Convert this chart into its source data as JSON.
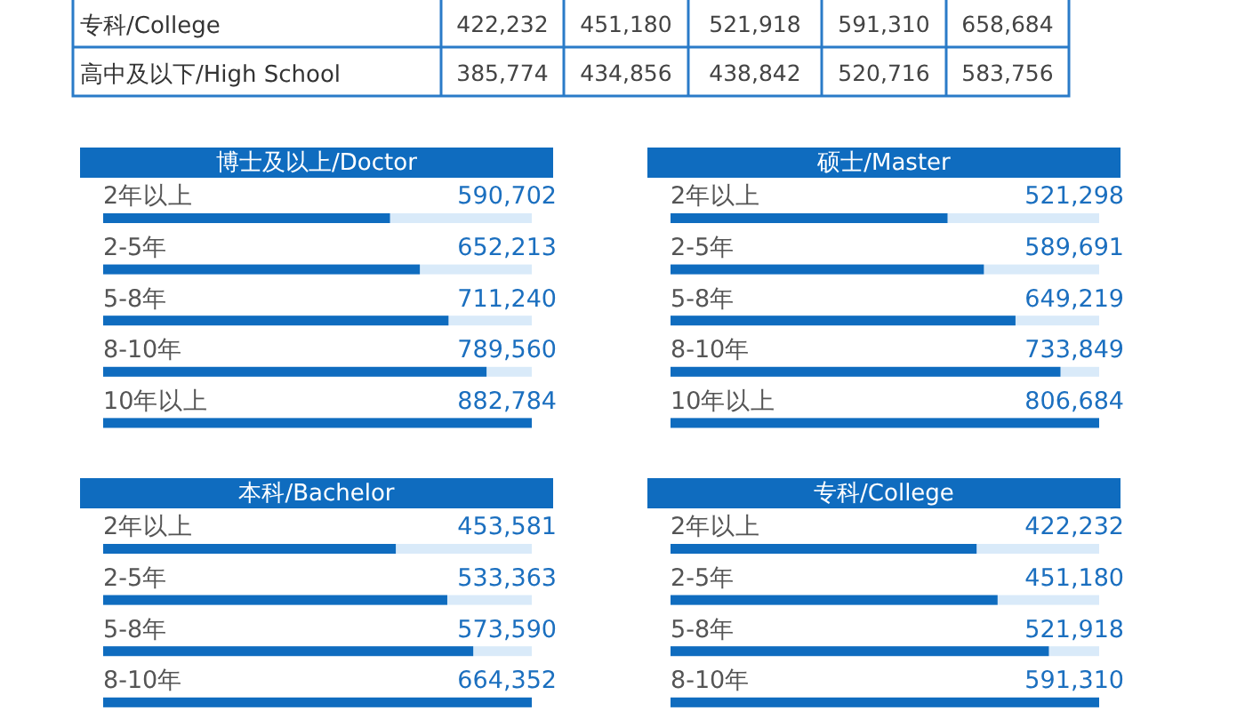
{
  "chart_data": [
    {
      "type": "other",
      "annotations": [
        "专科/College",
        "422,232",
        "451,180",
        "521,918",
        "591,310",
        "658,684",
        "高中及以下/High School",
        "385,774",
        "434,856",
        "438,842",
        "520,716",
        "583,756"
      ],
      "color": "#2a7bc8"
    },
    {
      "type": "bar",
      "orientation": "horizontal",
      "title": "博士及以上/Doctor",
      "categories": [
        "2年以上",
        "2-5年",
        "5-8年",
        "8-10年",
        "10年以上"
      ],
      "values": [
        590702,
        652213,
        711240,
        789560,
        882784
      ],
      "value_labels": [
        "590,702",
        "652,213",
        "711,240",
        "789,560",
        "882,784"
      ],
      "color": "#0f6cbf",
      "tick_labels": "y"
    },
    {
      "type": "bar",
      "orientation": "horizontal",
      "title": "硕士/Master",
      "categories": [
        "2年以上",
        "2-5年",
        "5-8年",
        "8-10年",
        "10年以上"
      ],
      "values": [
        521298,
        589691,
        649219,
        733849,
        806684
      ],
      "value_labels": [
        "521,298",
        "589,691",
        "649,219",
        "733,849",
        "806,684"
      ],
      "color": "#0f6cbf",
      "tick_labels": "y"
    },
    {
      "type": "bar",
      "orientation": "horizontal",
      "title": "本科/Bachelor",
      "categories": [
        "2年以上",
        "2-5年",
        "5-8年",
        "8-10年"
      ],
      "values": [
        453581,
        533363,
        573590,
        664352
      ],
      "value_labels": [
        "453,581",
        "533,363",
        "573,590",
        "664,352"
      ],
      "color": "#0f6cbf",
      "tick_labels": "y"
    },
    {
      "type": "bar",
      "orientation": "horizontal",
      "title": "专科/College",
      "categories": [
        "2年以上",
        "2-5年",
        "5-8年",
        "8-10年"
      ],
      "values": [
        422232,
        451180,
        521918,
        591310
      ],
      "value_labels": [
        "422,232",
        "451,180",
        "521,918",
        "591,310"
      ],
      "color": "#0f6cbf",
      "tick_labels": "y"
    }
  ]
}
